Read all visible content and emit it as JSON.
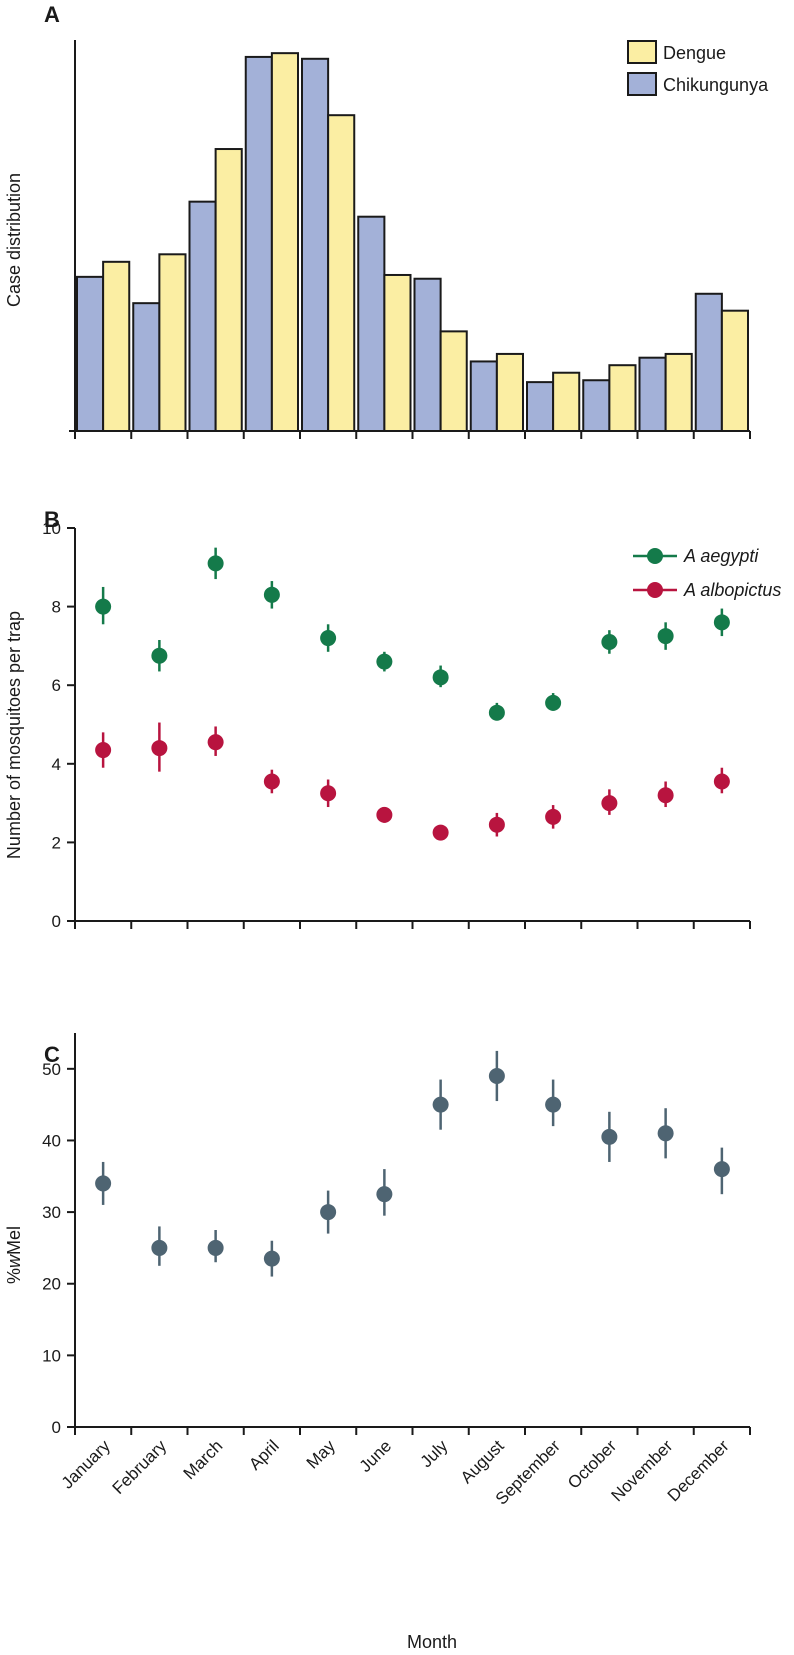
{
  "chart_data": [
    {
      "panel": "A",
      "type": "bar",
      "title": "",
      "xlabel": "",
      "ylabel": "Case distribution",
      "categories": [
        "January",
        "February",
        "March",
        "April",
        "May",
        "June",
        "July",
        "August",
        "September",
        "October",
        "November",
        "December"
      ],
      "series": [
        {
          "name": "Chikungunya",
          "color": "#a3b1d8",
          "values": [
            41,
            34,
            61,
            99.5,
            99,
            57,
            40.5,
            18.5,
            13,
            13.5,
            19.5,
            36.5
          ]
        },
        {
          "name": "Dengue",
          "color": "#fbeea3",
          "values": [
            45,
            47,
            75,
            100.5,
            84,
            41.5,
            26.5,
            20.5,
            15.5,
            17.5,
            20.5,
            32
          ]
        }
      ],
      "ylim": [
        0,
        104
      ],
      "grid": false,
      "legend": "top-right"
    },
    {
      "panel": "B",
      "type": "scatter",
      "title": "",
      "xlabel": "",
      "ylabel": "Number of mosquitoes per trap",
      "categories": [
        "January",
        "February",
        "March",
        "April",
        "May",
        "June",
        "July",
        "August",
        "September",
        "October",
        "November",
        "December"
      ],
      "series": [
        {
          "name": "A aegypti",
          "color": "#147a4a",
          "values": [
            8.0,
            6.75,
            9.1,
            8.3,
            7.2,
            6.6,
            6.2,
            5.3,
            5.55,
            7.1,
            7.25,
            7.6
          ],
          "lower": [
            7.55,
            6.35,
            8.7,
            7.95,
            6.85,
            6.35,
            5.95,
            5.1,
            5.35,
            6.8,
            6.9,
            7.25
          ],
          "upper": [
            8.5,
            7.15,
            9.5,
            8.65,
            7.55,
            6.85,
            6.5,
            5.55,
            5.8,
            7.4,
            7.6,
            7.95
          ]
        },
        {
          "name": "A albopictus",
          "color": "#b8143f",
          "values": [
            4.35,
            4.4,
            4.55,
            3.55,
            3.25,
            2.7,
            2.25,
            2.45,
            2.65,
            3.0,
            3.2,
            3.55
          ],
          "lower": [
            3.9,
            3.8,
            4.2,
            3.25,
            2.9,
            2.5,
            2.1,
            2.15,
            2.35,
            2.7,
            2.9,
            3.25
          ],
          "upper": [
            4.8,
            5.05,
            4.95,
            3.85,
            3.6,
            2.9,
            2.4,
            2.75,
            2.95,
            3.35,
            3.55,
            3.9
          ]
        }
      ],
      "yticks": [
        "0",
        "2",
        "4",
        "6",
        "8",
        "10"
      ],
      "ylim": [
        0,
        10
      ],
      "grid": false,
      "legend": "top-right"
    },
    {
      "panel": "C",
      "type": "scatter",
      "title": "",
      "xlabel": "Month",
      "ylabel": "%wMel",
      "ylabel_parts": [
        "%",
        "w",
        "Mel"
      ],
      "categories": [
        "January",
        "February",
        "March",
        "April",
        "May",
        "June",
        "July",
        "August",
        "September",
        "October",
        "November",
        "December"
      ],
      "series": [
        {
          "name": "%wMel",
          "color": "#4e6472",
          "values": [
            34,
            25,
            25,
            23.5,
            30,
            32.5,
            45,
            49,
            45,
            40.5,
            41,
            36
          ],
          "lower": [
            31,
            22.5,
            23,
            21,
            27,
            29.5,
            41.5,
            45.5,
            42,
            37,
            37.5,
            32.5
          ],
          "upper": [
            37,
            28,
            27.5,
            26,
            33,
            36,
            48.5,
            52.5,
            48.5,
            44,
            44.5,
            39
          ]
        }
      ],
      "yticks": [
        "0",
        "10",
        "20",
        "30",
        "40",
        "50"
      ],
      "ylim": [
        0,
        55
      ],
      "grid": false
    }
  ]
}
